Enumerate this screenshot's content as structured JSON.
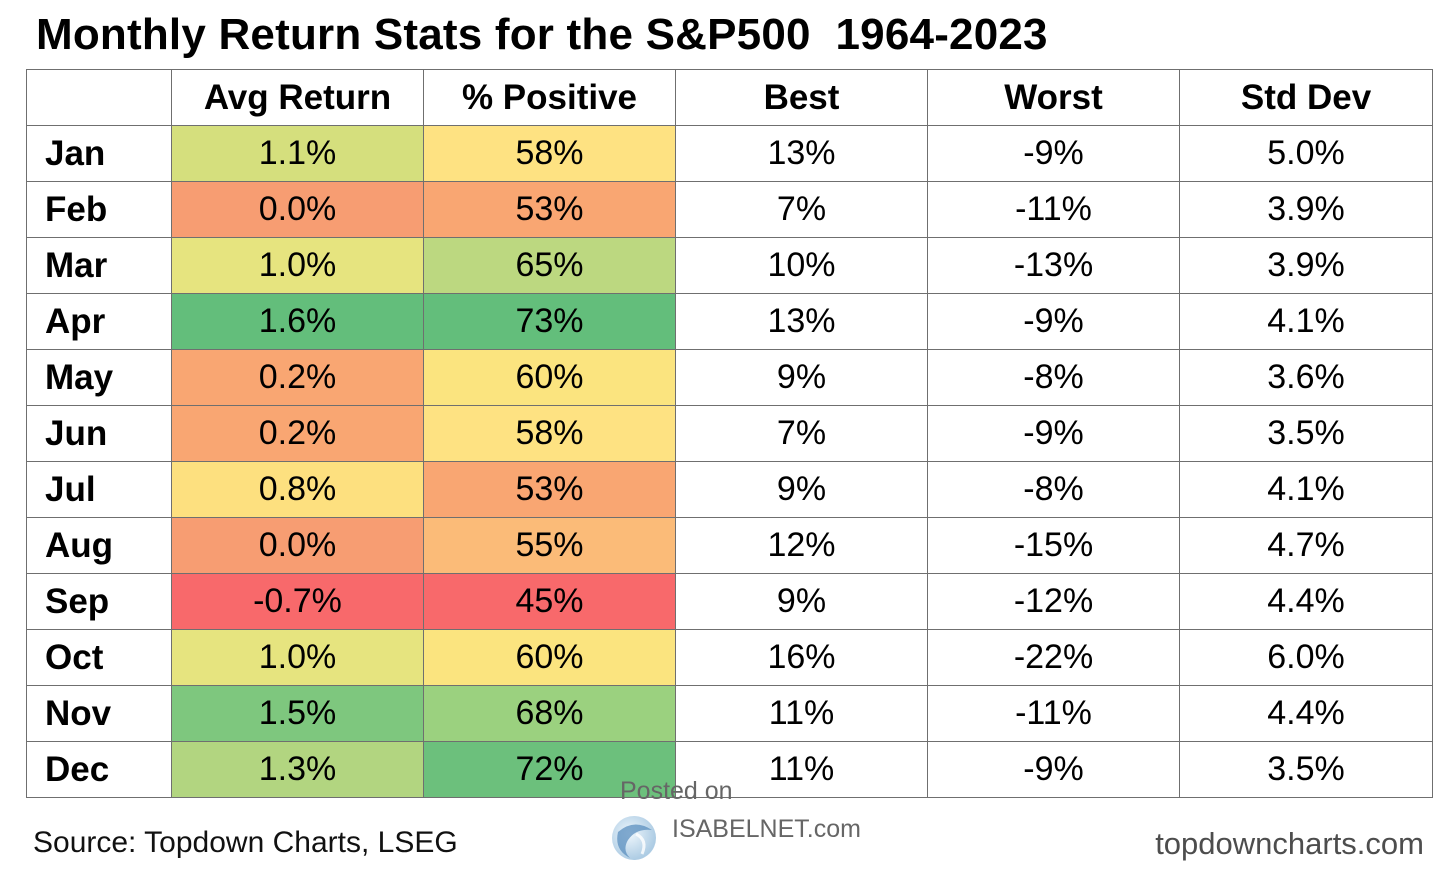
{
  "title": "Monthly Return Stats for the S&P500  1964-2023",
  "source": "Source: Topdown Charts, LSEG",
  "site": "topdowncharts.com",
  "watermark": {
    "posted": "Posted on",
    "site": "ISABELNET.com"
  },
  "chart_data": {
    "type": "table",
    "title": "Monthly Return Stats for the S&P500  1964-2023",
    "columns": [
      "",
      "Avg Return",
      "% Positive",
      "Best",
      "Worst",
      "Std Dev"
    ],
    "rows": [
      [
        "Jan",
        "1.1%",
        "58%",
        "13%",
        "-9%",
        "5.0%"
      ],
      [
        "Feb",
        "0.0%",
        "53%",
        "7%",
        "-11%",
        "3.9%"
      ],
      [
        "Mar",
        "1.0%",
        "65%",
        "10%",
        "-13%",
        "3.9%"
      ],
      [
        "Apr",
        "1.6%",
        "73%",
        "13%",
        "-9%",
        "4.1%"
      ],
      [
        "May",
        "0.2%",
        "60%",
        "9%",
        "-8%",
        "3.6%"
      ],
      [
        "Jun",
        "0.2%",
        "58%",
        "7%",
        "-9%",
        "3.5%"
      ],
      [
        "Jul",
        "0.8%",
        "53%",
        "9%",
        "-8%",
        "4.1%"
      ],
      [
        "Aug",
        "0.0%",
        "55%",
        "12%",
        "-15%",
        "4.7%"
      ],
      [
        "Sep",
        "-0.7%",
        "45%",
        "9%",
        "-12%",
        "4.4%"
      ],
      [
        "Oct",
        "1.0%",
        "60%",
        "16%",
        "-22%",
        "6.0%"
      ],
      [
        "Nov",
        "1.5%",
        "68%",
        "11%",
        "-11%",
        "4.4%"
      ],
      [
        "Dec",
        "1.3%",
        "72%",
        "11%",
        "-9%",
        "3.5%"
      ]
    ],
    "heatmap_colors": {
      "avg_return": [
        "#d5df7d",
        "#f79d72",
        "#e6e47f",
        "#63be7b",
        "#f9a672",
        "#f9a672",
        "#fde07f",
        "#f79d72",
        "#f8696b",
        "#e6e47f",
        "#7ec77e",
        "#b2d580"
      ],
      "pct_positive": [
        "#fee282",
        "#f9a672",
        "#bcd880",
        "#63be7b",
        "#fbe47f",
        "#fee282",
        "#f9a672",
        "#fbbb78",
        "#f8696b",
        "#fbe47f",
        "#9bd17f",
        "#6cc07c"
      ]
    }
  }
}
